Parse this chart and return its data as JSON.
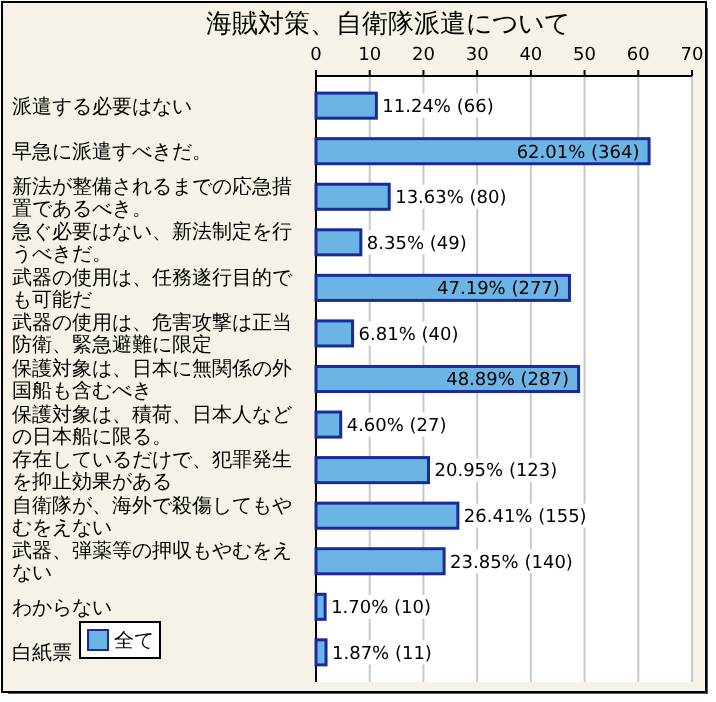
{
  "chart_data": {
    "type": "bar",
    "orientation": "horizontal",
    "title": "海賊対策、自衛隊派遣について",
    "categories": [
      "派遣する必要はない",
      "早急に派遣すべきだ。",
      "新法が整備されるまでの応急措置であるべき。",
      "急ぐ必要はない、新法制定を行うべきだ。",
      "武器の使用は、任務遂行目的でも可能だ",
      "武器の使用は、危害攻撃は正当防衛、緊急避難に限定",
      "保護対象は、日本に無関係の外国船も含むべき",
      "保護対象は、積荷、日本人などの日本船に限る。",
      "存在しているだけで、犯罪発生を抑止効果がある",
      "自衛隊が、海外で殺傷してもやむをえない",
      "武器、弾薬等の押収もやむをえない",
      "わからない",
      "白紙票"
    ],
    "series": [
      {
        "name": "全て",
        "color": "#6cb4e4",
        "values": [
          11.24,
          62.01,
          13.63,
          8.35,
          47.19,
          6.81,
          48.89,
          4.6,
          20.95,
          26.41,
          23.85,
          1.7,
          1.87
        ],
        "value_labels": [
          "11.24% (66)",
          "62.01% (364)",
          "13.63% (80)",
          "8.35% (49)",
          "47.19% (277)",
          "6.81% (40)",
          "48.89% (287)",
          "4.60% (27)",
          "20.95% (123)",
          "26.41% (155)",
          "23.85% (140)",
          "1.70% (10)",
          "1.87% (11)"
        ]
      }
    ],
    "xlim": [
      0,
      70
    ],
    "xticks": [
      0,
      10,
      20,
      30,
      40,
      50,
      60,
      70
    ],
    "grid": "x",
    "legend": "bottom left"
  }
}
